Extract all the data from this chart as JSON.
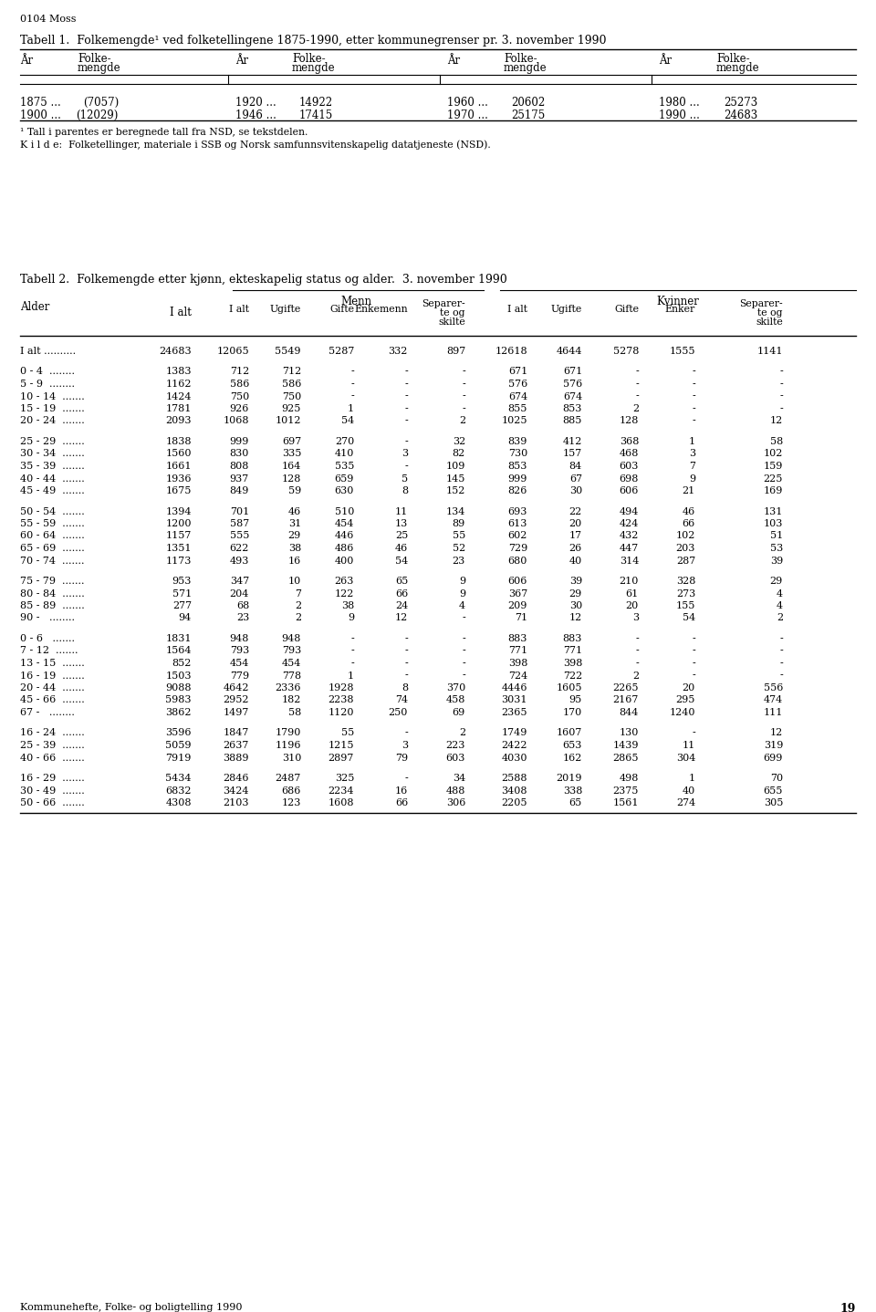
{
  "page_label": "0104 Moss",
  "table1_title": "Tabell 1.  Folkemengde¹ ved folketellingene 1875-1990, etter kommunegrenser pr. 3. november 1990",
  "table1_data": [
    [
      "1875 ...",
      "(7057)",
      "1920 ...",
      "14922",
      "1960 ...",
      "20602",
      "1980 ...",
      "25273"
    ],
    [
      "1900 ...",
      "(12029)",
      "1946 ...",
      "17415",
      "1970 ...",
      "25175",
      "1990 ...",
      "24683"
    ]
  ],
  "table1_footnote1": "¹ Tall i parentes er beregnede tall fra NSD, se tekstdelen.",
  "table1_footnote2": "K i l d e:  Folketellinger, materiale i SSB og Norsk samfunnsvitenskapelig datatjeneste (NSD).",
  "table2_title": "Tabell 2.  Folkemengde etter kjønn, ekteskapelig status og alder.  3. november 1990",
  "table2_rows": [
    [
      "I alt ..........",
      "24683",
      "12065",
      "5549",
      "5287",
      "332",
      "897",
      "12618",
      "4644",
      "5278",
      "1555",
      "1141"
    ],
    [
      "",
      "",
      "",
      "",
      "",
      "",
      "",
      "",
      "",
      "",
      "",
      ""
    ],
    [
      "0 - 4  ........",
      "1383",
      "712",
      "712",
      "-",
      "-",
      "-",
      "671",
      "671",
      "-",
      "-",
      "-"
    ],
    [
      "5 - 9  ........",
      "1162",
      "586",
      "586",
      "-",
      "-",
      "-",
      "576",
      "576",
      "-",
      "-",
      "-"
    ],
    [
      "10 - 14  .......",
      "1424",
      "750",
      "750",
      "-",
      "-",
      "-",
      "674",
      "674",
      "-",
      "-",
      "-"
    ],
    [
      "15 - 19  .......",
      "1781",
      "926",
      "925",
      "1",
      "-",
      "-",
      "855",
      "853",
      "2",
      "-",
      "-"
    ],
    [
      "20 - 24  .......",
      "2093",
      "1068",
      "1012",
      "54",
      "-",
      "2",
      "1025",
      "885",
      "128",
      "-",
      "12"
    ],
    [
      "",
      "",
      "",
      "",
      "",
      "",
      "",
      "",
      "",
      "",
      "",
      ""
    ],
    [
      "25 - 29  .......",
      "1838",
      "999",
      "697",
      "270",
      "-",
      "32",
      "839",
      "412",
      "368",
      "1",
      "58"
    ],
    [
      "30 - 34  .......",
      "1560",
      "830",
      "335",
      "410",
      "3",
      "82",
      "730",
      "157",
      "468",
      "3",
      "102"
    ],
    [
      "35 - 39  .......",
      "1661",
      "808",
      "164",
      "535",
      "-",
      "109",
      "853",
      "84",
      "603",
      "7",
      "159"
    ],
    [
      "40 - 44  .......",
      "1936",
      "937",
      "128",
      "659",
      "5",
      "145",
      "999",
      "67",
      "698",
      "9",
      "225"
    ],
    [
      "45 - 49  .......",
      "1675",
      "849",
      "59",
      "630",
      "8",
      "152",
      "826",
      "30",
      "606",
      "21",
      "169"
    ],
    [
      "",
      "",
      "",
      "",
      "",
      "",
      "",
      "",
      "",
      "",
      "",
      ""
    ],
    [
      "50 - 54  .......",
      "1394",
      "701",
      "46",
      "510",
      "11",
      "134",
      "693",
      "22",
      "494",
      "46",
      "131"
    ],
    [
      "55 - 59  .......",
      "1200",
      "587",
      "31",
      "454",
      "13",
      "89",
      "613",
      "20",
      "424",
      "66",
      "103"
    ],
    [
      "60 - 64  .......",
      "1157",
      "555",
      "29",
      "446",
      "25",
      "55",
      "602",
      "17",
      "432",
      "102",
      "51"
    ],
    [
      "65 - 69  .......",
      "1351",
      "622",
      "38",
      "486",
      "46",
      "52",
      "729",
      "26",
      "447",
      "203",
      "53"
    ],
    [
      "70 - 74  .......",
      "1173",
      "493",
      "16",
      "400",
      "54",
      "23",
      "680",
      "40",
      "314",
      "287",
      "39"
    ],
    [
      "",
      "",
      "",
      "",
      "",
      "",
      "",
      "",
      "",
      "",
      "",
      ""
    ],
    [
      "75 - 79  .......",
      "953",
      "347",
      "10",
      "263",
      "65",
      "9",
      "606",
      "39",
      "210",
      "328",
      "29"
    ],
    [
      "80 - 84  .......",
      "571",
      "204",
      "7",
      "122",
      "66",
      "9",
      "367",
      "29",
      "61",
      "273",
      "4"
    ],
    [
      "85 - 89  .......",
      "277",
      "68",
      "2",
      "38",
      "24",
      "4",
      "209",
      "30",
      "20",
      "155",
      "4"
    ],
    [
      "90 -   ........",
      "94",
      "23",
      "2",
      "9",
      "12",
      "-",
      "71",
      "12",
      "3",
      "54",
      "2"
    ],
    [
      "",
      "",
      "",
      "",
      "",
      "",
      "",
      "",
      "",
      "",
      "",
      ""
    ],
    [
      "0 - 6   .......",
      "1831",
      "948",
      "948",
      "-",
      "-",
      "-",
      "883",
      "883",
      "-",
      "-",
      "-"
    ],
    [
      "7 - 12  .......",
      "1564",
      "793",
      "793",
      "-",
      "-",
      "-",
      "771",
      "771",
      "-",
      "-",
      "-"
    ],
    [
      "13 - 15  .......",
      "852",
      "454",
      "454",
      "-",
      "-",
      "-",
      "398",
      "398",
      "-",
      "-",
      "-"
    ],
    [
      "16 - 19  .......",
      "1503",
      "779",
      "778",
      "1",
      "-",
      "-",
      "724",
      "722",
      "2",
      "-",
      "-"
    ],
    [
      "20 - 44  .......",
      "9088",
      "4642",
      "2336",
      "1928",
      "8",
      "370",
      "4446",
      "1605",
      "2265",
      "20",
      "556"
    ],
    [
      "45 - 66  .......",
      "5983",
      "2952",
      "182",
      "2238",
      "74",
      "458",
      "3031",
      "95",
      "2167",
      "295",
      "474"
    ],
    [
      "67 -   ........",
      "3862",
      "1497",
      "58",
      "1120",
      "250",
      "69",
      "2365",
      "170",
      "844",
      "1240",
      "111"
    ],
    [
      "",
      "",
      "",
      "",
      "",
      "",
      "",
      "",
      "",
      "",
      "",
      ""
    ],
    [
      "16 - 24  .......",
      "3596",
      "1847",
      "1790",
      "55",
      "-",
      "2",
      "1749",
      "1607",
      "130",
      "-",
      "12"
    ],
    [
      "25 - 39  .......",
      "5059",
      "2637",
      "1196",
      "1215",
      "3",
      "223",
      "2422",
      "653",
      "1439",
      "11",
      "319"
    ],
    [
      "40 - 66  .......",
      "7919",
      "3889",
      "310",
      "2897",
      "79",
      "603",
      "4030",
      "162",
      "2865",
      "304",
      "699"
    ],
    [
      "",
      "",
      "",
      "",
      "",
      "",
      "",
      "",
      "",
      "",
      "",
      ""
    ],
    [
      "16 - 29  .......",
      "5434",
      "2846",
      "2487",
      "325",
      "-",
      "34",
      "2588",
      "2019",
      "498",
      "1",
      "70"
    ],
    [
      "30 - 49  .......",
      "6832",
      "3424",
      "686",
      "2234",
      "16",
      "488",
      "3408",
      "338",
      "2375",
      "40",
      "655"
    ],
    [
      "50 - 66  .......",
      "4308",
      "2103",
      "123",
      "1608",
      "66",
      "306",
      "2205",
      "65",
      "1561",
      "274",
      "305"
    ]
  ],
  "footer": "Kommunehefte, Folke- og boligtelling 1990",
  "page_number": "19",
  "bg": "#ffffff",
  "fg": "#000000"
}
